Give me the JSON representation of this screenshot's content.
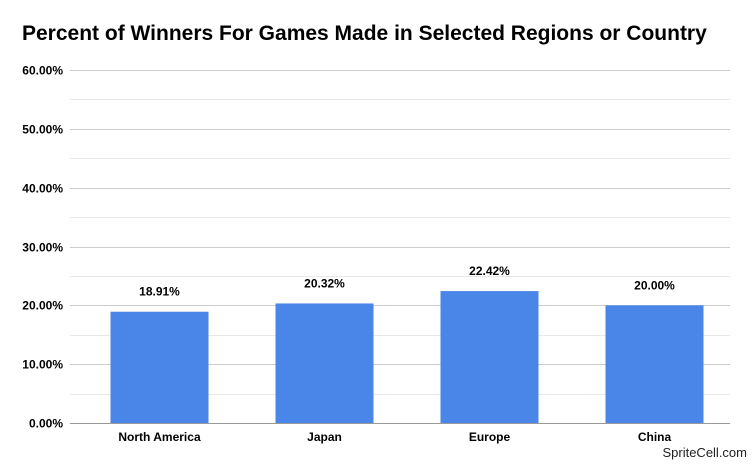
{
  "title": "Percent of Winners For Games Made in Selected Regions or Country",
  "watermark": "SpriteCell.com",
  "colors": {
    "bar": "#4a86e8",
    "grid": "#cccccc",
    "minor_grid": "#e8e8e8",
    "text": "#000000"
  },
  "chart_data": {
    "type": "bar",
    "title": "Percent of Winners For Games Made in Selected Regions or Country",
    "xlabel": "",
    "ylabel": "",
    "categories": [
      "North America",
      "Japan",
      "Europe",
      "China"
    ],
    "values": [
      18.91,
      20.32,
      22.42,
      20.0
    ],
    "value_labels": [
      "18.91%",
      "20.32%",
      "22.42%",
      "20.00%"
    ],
    "ylim": [
      0,
      60
    ],
    "yticks": [
      0,
      10,
      20,
      30,
      40,
      50,
      60
    ],
    "ytick_labels": [
      "0.00%",
      "10.00%",
      "20.00%",
      "30.00%",
      "40.00%",
      "50.00%",
      "60.00%"
    ],
    "grid": true,
    "legend": "none"
  }
}
